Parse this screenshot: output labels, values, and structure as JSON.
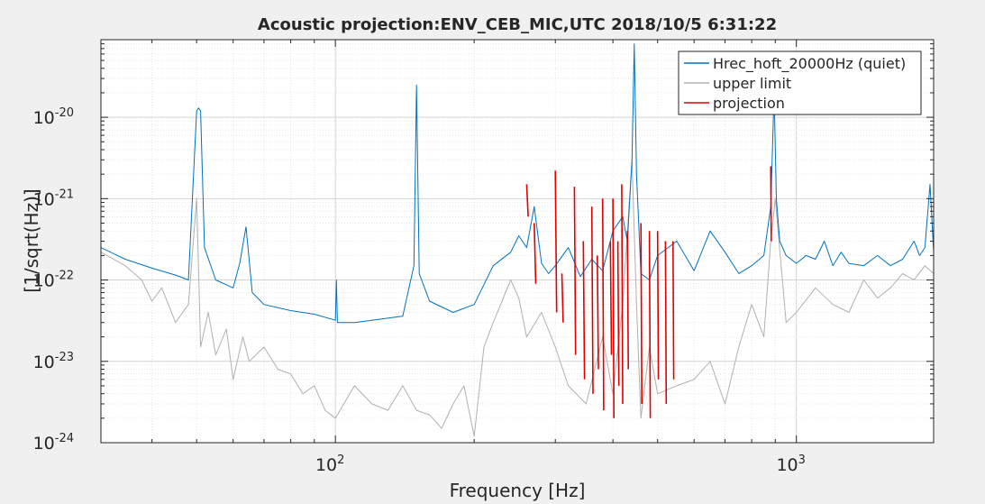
{
  "chart_data": {
    "type": "line",
    "title": "Acoustic projection:ENV_CEB_MIC,UTC 2018/10/5 6:31:22",
    "xlabel": "Frequency [Hz]",
    "ylabel": "[1/sqrt(Hz)]",
    "xscale": "log",
    "yscale": "log",
    "xlim": [
      31,
      1985
    ],
    "ylim": [
      1e-24,
      9e-20
    ],
    "grid": true,
    "legend": "top-right",
    "x_ticks": [
      {
        "value": 100,
        "base": "10",
        "exp": "2"
      },
      {
        "value": 1000,
        "base": "10",
        "exp": "3"
      }
    ],
    "y_ticks": [
      {
        "value": 1e-24,
        "base": "10",
        "exp": "-24"
      },
      {
        "value": 1e-23,
        "base": "10",
        "exp": "-23"
      },
      {
        "value": 1e-22,
        "base": "10",
        "exp": "-22"
      },
      {
        "value": 1e-21,
        "base": "10",
        "exp": "-21"
      },
      {
        "value": 1e-20,
        "base": "10",
        "exp": "-20"
      }
    ],
    "series": [
      {
        "name": "Hrec_hoft_20000Hz (quiet)",
        "color": "#0072bd",
        "x": [
          31,
          35,
          40,
          45,
          48,
          50,
          50.5,
          51,
          52,
          55,
          60,
          62,
          64,
          66,
          70,
          80,
          90,
          100,
          100.5,
          101,
          110,
          120,
          140,
          148,
          150,
          152,
          160,
          180,
          200,
          220,
          240,
          250,
          260,
          270,
          280,
          290,
          300,
          320,
          340,
          360,
          380,
          400,
          420,
          430,
          440,
          445,
          450,
          460,
          480,
          500,
          550,
          600,
          650,
          700,
          750,
          800,
          850,
          880,
          895,
          905,
          920,
          950,
          1000,
          1050,
          1100,
          1150,
          1200,
          1250,
          1300,
          1400,
          1500,
          1600,
          1700,
          1800,
          1850,
          1900,
          1950,
          1985
        ],
        "y": [
          2.5e-22,
          1.8e-22,
          1.4e-22,
          1.15e-22,
          1e-22,
          1.2e-20,
          1.3e-20,
          1.2e-20,
          2.5e-22,
          1e-22,
          8e-23,
          1.6e-22,
          4.5e-22,
          7e-23,
          5e-23,
          4.2e-23,
          3.8e-23,
          3.2e-23,
          1e-22,
          3e-23,
          3e-23,
          3.2e-23,
          3.6e-23,
          1.5e-22,
          2.5e-20,
          1.2e-22,
          5.5e-23,
          4e-23,
          5e-23,
          1.5e-22,
          2.2e-22,
          3.5e-22,
          2.5e-22,
          8e-22,
          1.6e-22,
          1.2e-22,
          1.5e-22,
          2.5e-22,
          1.1e-22,
          1.8e-22,
          1.3e-22,
          4e-22,
          6e-22,
          3e-22,
          3e-21,
          8e-20,
          2e-21,
          1.2e-22,
          1e-22,
          2e-22,
          3e-22,
          1.3e-22,
          4e-22,
          2.2e-22,
          1.2e-22,
          1.5e-22,
          2e-22,
          8e-22,
          2e-20,
          1e-21,
          3e-22,
          2e-22,
          1.6e-22,
          2e-22,
          1.8e-22,
          3e-22,
          1.5e-22,
          2.2e-22,
          1.6e-22,
          1.5e-22,
          2e-22,
          1.5e-22,
          1.8e-22,
          3e-22,
          2e-22,
          2.5e-22,
          1.5e-21,
          2.2e-22
        ]
      },
      {
        "name": "upper limit",
        "color": "#b0b0b0",
        "x": [
          31,
          35,
          38,
          40,
          42,
          45,
          48,
          50,
          51,
          53,
          55,
          58,
          60,
          63,
          65,
          70,
          75,
          80,
          85,
          90,
          95,
          100,
          110,
          120,
          130,
          140,
          150,
          160,
          170,
          180,
          190,
          200,
          210,
          220,
          240,
          250,
          260,
          280,
          300,
          320,
          350,
          380,
          400,
          420,
          440,
          450,
          460,
          480,
          500,
          550,
          600,
          650,
          700,
          750,
          800,
          850,
          880,
          900,
          950,
          1000,
          1100,
          1200,
          1300,
          1400,
          1500,
          1600,
          1700,
          1800,
          1900,
          1985
        ],
        "y": [
          2.2e-22,
          1.5e-22,
          1e-22,
          5.5e-23,
          8e-23,
          3e-23,
          5e-23,
          1e-21,
          1.5e-23,
          4e-23,
          1.2e-23,
          2.5e-23,
          6e-24,
          2e-23,
          1e-23,
          1.5e-23,
          8e-24,
          7e-24,
          4e-24,
          5e-24,
          2.5e-24,
          2e-24,
          5e-24,
          3e-24,
          2.5e-24,
          5e-24,
          2.5e-24,
          2.2e-24,
          1.5e-24,
          3e-24,
          5e-24,
          1.2e-24,
          1.5e-23,
          3e-23,
          1e-22,
          6e-23,
          2e-23,
          4e-23,
          1.5e-23,
          5e-24,
          3e-24,
          2e-23,
          4e-24,
          5e-23,
          3e-21,
          5e-23,
          2e-24,
          1.5e-23,
          4e-24,
          5e-24,
          6e-24,
          1e-23,
          3e-24,
          1.5e-23,
          5e-23,
          2e-23,
          3e-22,
          1e-21,
          3e-23,
          4e-23,
          8e-23,
          5e-23,
          4e-23,
          1e-22,
          6e-23,
          8e-23,
          1.2e-22,
          1e-22,
          1.5e-22,
          1.2e-22
        ]
      },
      {
        "name": "projection",
        "color": "#e00000",
        "x": [
          260,
          262,
          270,
          272,
          300,
          302,
          310,
          312,
          330,
          332,
          345,
          347,
          360,
          362,
          370,
          372,
          380,
          382,
          395,
          397,
          400,
          402,
          410,
          412,
          418,
          420,
          430,
          432,
          460,
          462,
          480,
          482,
          500,
          502,
          520,
          522,
          540,
          542,
          880,
          882
        ],
        "y": [
          1.5e-21,
          6e-22,
          5e-22,
          9e-23,
          2.2e-21,
          4e-23,
          1.2e-22,
          3e-23,
          1.4e-21,
          1.2e-23,
          3e-22,
          6e-24,
          8e-22,
          4e-24,
          2e-22,
          8e-24,
          1e-21,
          2.5e-24,
          3e-22,
          1.2e-23,
          1e-21,
          2e-24,
          3e-22,
          5e-24,
          1.5e-21,
          3e-24,
          4e-22,
          8e-24,
          5e-22,
          3e-24,
          4e-22,
          2e-24,
          4e-22,
          6e-24,
          3e-22,
          3e-24,
          3e-22,
          6e-24,
          2.5e-21,
          3e-22
        ]
      }
    ]
  }
}
